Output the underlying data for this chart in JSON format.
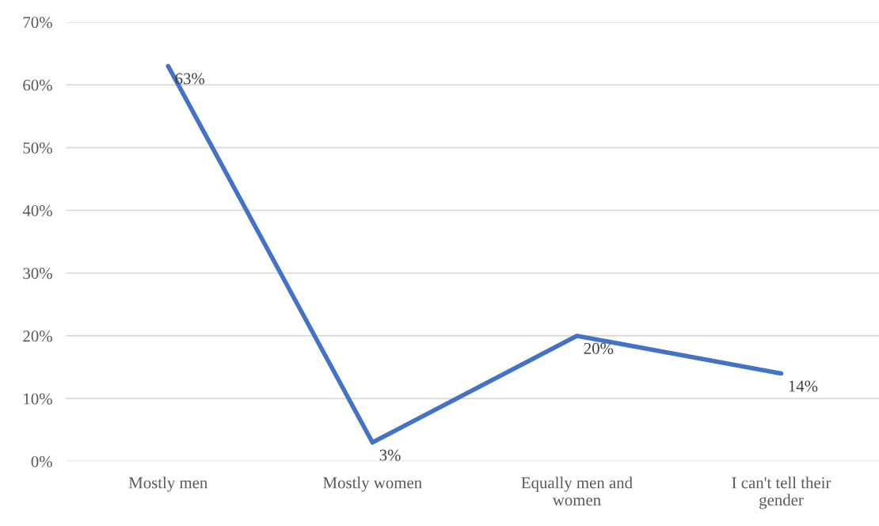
{
  "chart_data": {
    "type": "line",
    "categories": [
      "Mostly men",
      "Mostly women",
      "Equally men and\nwomen",
      "I can't tell their\ngender"
    ],
    "series": [
      {
        "color": "#4472c4",
        "values": [
          63,
          3,
          20,
          14
        ]
      }
    ],
    "value_labels": [
      "63%",
      "3%",
      "20%",
      "14%"
    ],
    "ylim": [
      0,
      70
    ],
    "yticks": [
      {
        "value": 0,
        "label": "0%"
      },
      {
        "value": 10,
        "label": "10%"
      },
      {
        "value": 20,
        "label": "20%"
      },
      {
        "value": 30,
        "label": "30%"
      },
      {
        "value": 40,
        "label": "40%"
      },
      {
        "value": 50,
        "label": "50%"
      },
      {
        "value": 60,
        "label": "60%"
      },
      {
        "value": 70,
        "label": "70%"
      }
    ],
    "grid": "y",
    "marker": "none",
    "line_style": "solid"
  }
}
